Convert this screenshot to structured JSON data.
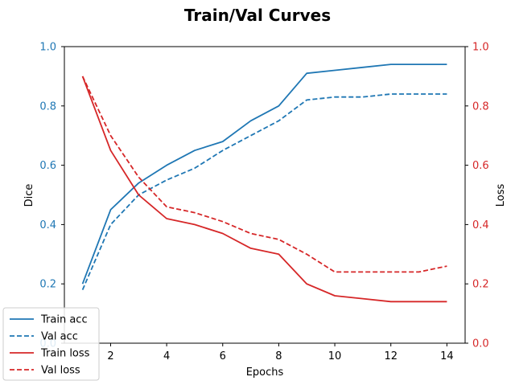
{
  "chart_data": {
    "type": "line",
    "title": "Train/Val Curves",
    "xlabel": "Epochs",
    "xlim": [
      0.35,
      14.65
    ],
    "x_ticks": [
      2,
      4,
      6,
      8,
      10,
      12,
      14
    ],
    "y_left": {
      "label": "Dice",
      "lim": [
        0.0,
        1.0
      ],
      "ticks": [
        0.0,
        0.2,
        0.4,
        0.6,
        0.8,
        1.0
      ],
      "color": "#1f77b4"
    },
    "y_right": {
      "label": "Loss",
      "lim": [
        0.0,
        1.0
      ],
      "ticks": [
        0.0,
        0.2,
        0.4,
        0.6,
        0.8,
        1.0
      ],
      "color": "#d62728"
    },
    "legend_position": "bottom-left",
    "grid": false,
    "x": [
      1,
      2,
      3,
      4,
      5,
      6,
      7,
      8,
      9,
      10,
      11,
      12,
      13,
      14
    ],
    "series": [
      {
        "name": "Train acc",
        "axis": "left",
        "color": "#1f77b4",
        "dashed": false,
        "values": [
          0.2,
          0.45,
          0.54,
          0.6,
          0.65,
          0.68,
          0.75,
          0.8,
          0.91,
          0.92,
          0.93,
          0.94,
          0.94,
          0.94
        ]
      },
      {
        "name": "Val acc",
        "axis": "left",
        "color": "#1f77b4",
        "dashed": true,
        "values": [
          0.18,
          0.4,
          0.5,
          0.55,
          0.59,
          0.65,
          0.7,
          0.75,
          0.82,
          0.83,
          0.83,
          0.84,
          0.84,
          0.84
        ]
      },
      {
        "name": "Train loss",
        "axis": "right",
        "color": "#d62728",
        "dashed": false,
        "values": [
          0.9,
          0.65,
          0.5,
          0.42,
          0.4,
          0.37,
          0.32,
          0.3,
          0.2,
          0.16,
          0.15,
          0.14,
          0.14,
          0.14
        ]
      },
      {
        "name": "Val loss",
        "axis": "right",
        "color": "#d62728",
        "dashed": true,
        "values": [
          0.9,
          0.7,
          0.56,
          0.46,
          0.44,
          0.41,
          0.37,
          0.35,
          0.3,
          0.24,
          0.24,
          0.24,
          0.24,
          0.26
        ]
      }
    ]
  }
}
